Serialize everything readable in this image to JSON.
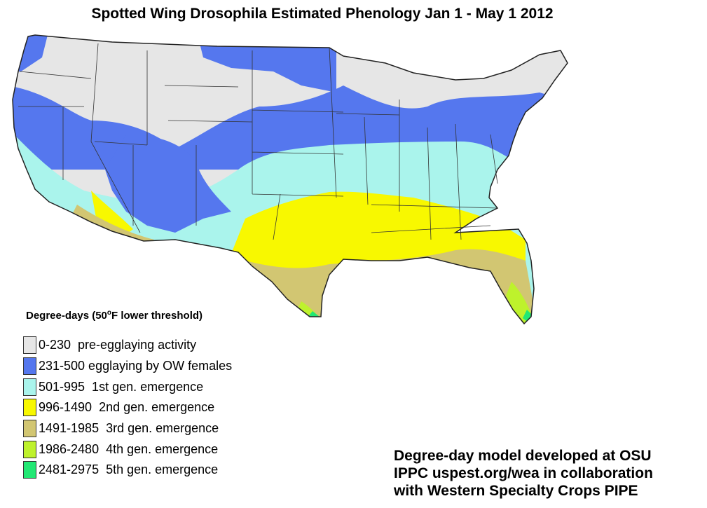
{
  "title": "Spotted Wing Drosophila Estimated Phenology Jan 1 - May 1 2012",
  "legend": {
    "title_prefix": "Degree-days (50",
    "title_degree": "o",
    "title_suffix": "F lower threshold)",
    "items": [
      {
        "label": "0-230  pre-egglaying activity",
        "color": "#e6e6e6"
      },
      {
        "label": "231-500 egglaying by OW females",
        "color": "#5577ee"
      },
      {
        "label": "501-995  1st gen. emergence",
        "color": "#aaf4ec"
      },
      {
        "label": "996-1490  2nd gen. emergence",
        "color": "#f8f800"
      },
      {
        "label": "1491-1985  3rd gen. emergence",
        "color": "#d2c672"
      },
      {
        "label": "1986-2480  4th gen. emergence",
        "color": "#bef22c"
      },
      {
        "label": "2481-2975  5th gen. emergence",
        "color": "#22e874"
      }
    ]
  },
  "credits": [
    "Degree-day model developed at OSU",
    "IPPC uspest.org/wea in collaboration",
    "with Western Specialty Crops PIPE"
  ]
}
